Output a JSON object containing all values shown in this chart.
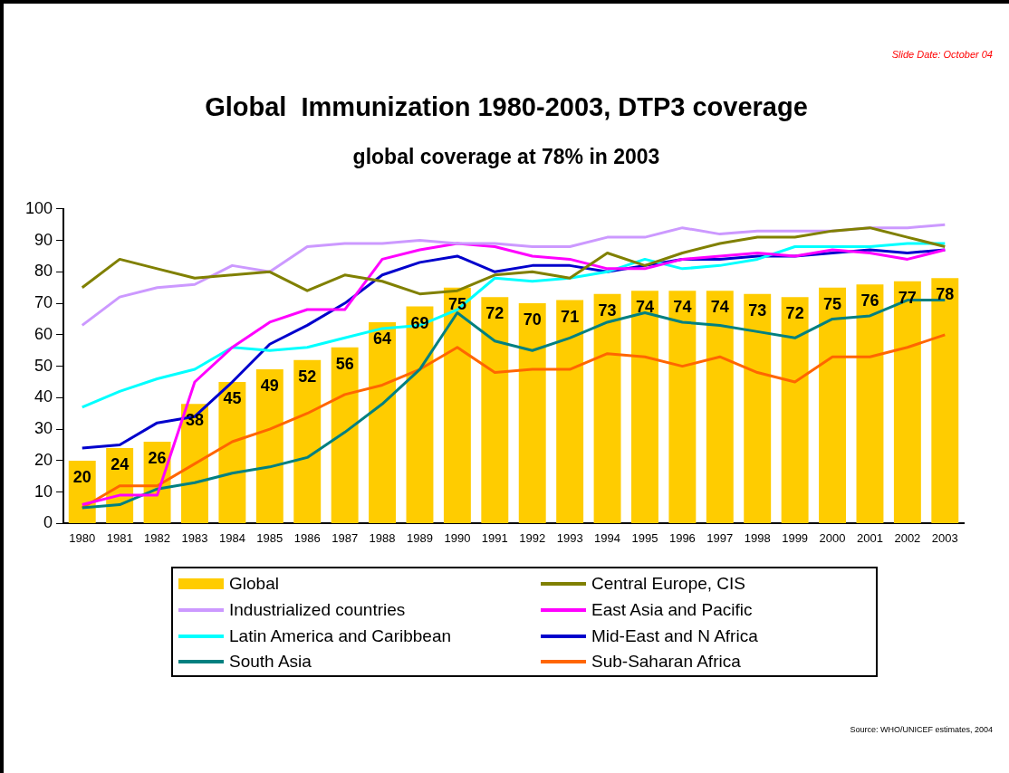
{
  "chart_data": {
    "type": "bar",
    "title": "Global  Immunization 1980-2003, DTP3 coverage",
    "subtitle": "global coverage at 78% in 2003",
    "annotations": [
      "Slide Date: October 04",
      "Source: WHO/UNICEF estimates, 2004"
    ],
    "categories": [
      "1980",
      "1981",
      "1982",
      "1983",
      "1984",
      "1985",
      "1986",
      "1987",
      "1988",
      "1989",
      "1990",
      "1991",
      "1992",
      "1993",
      "1994",
      "1995",
      "1996",
      "1997",
      "1998",
      "1999",
      "2000",
      "2001",
      "2002",
      "2003"
    ],
    "series": [
      {
        "name": "Global",
        "color": "#ffcc00",
        "values": [
          20,
          24,
          26,
          38,
          45,
          49,
          52,
          56,
          64,
          69,
          75,
          72,
          70,
          71,
          73,
          74,
          74,
          74,
          73,
          72,
          75,
          76,
          77,
          78
        ],
        "value_labels": [
          "20",
          "24",
          "26",
          "38",
          "45",
          "49",
          "52",
          "56",
          "64",
          "69",
          "75",
          "72",
          "70",
          "71",
          "73",
          "74",
          "74",
          "74",
          "73",
          "72",
          "75",
          "76",
          "77",
          "78"
        ]
      },
      {
        "name": "Central Europe, CIS",
        "type": "line",
        "color": "#808000",
        "values": [
          75,
          84,
          81,
          78,
          79,
          80,
          74,
          79,
          77,
          73,
          74,
          79,
          80,
          78,
          86,
          82,
          86,
          89,
          91,
          91,
          93,
          94,
          91,
          88
        ]
      },
      {
        "name": "Industrialized countries",
        "type": "line",
        "color": "#cc99ff",
        "values": [
          63,
          72,
          75,
          76,
          82,
          80,
          88,
          89,
          89,
          90,
          89,
          89,
          88,
          88,
          91,
          91,
          94,
          92,
          93,
          93,
          93,
          94,
          94,
          95
        ]
      },
      {
        "name": "East Asia and Pacific",
        "type": "line",
        "color": "#ff00ff",
        "values": [
          6,
          9,
          9,
          45,
          56,
          64,
          68,
          68,
          84,
          87,
          89,
          88,
          85,
          84,
          81,
          81,
          84,
          85,
          86,
          85,
          87,
          86,
          84,
          87
        ]
      },
      {
        "name": "Latin America and Caribbean",
        "type": "line",
        "color": "#00ffff",
        "values": [
          37,
          42,
          46,
          49,
          56,
          55,
          56,
          59,
          62,
          63,
          68,
          78,
          77,
          78,
          80,
          84,
          81,
          82,
          84,
          88,
          88,
          88,
          89,
          89
        ]
      },
      {
        "name": "Mid-East and N Africa",
        "type": "line",
        "color": "#0000cc",
        "values": [
          24,
          25,
          32,
          34,
          45,
          57,
          63,
          70,
          79,
          83,
          85,
          80,
          82,
          82,
          80,
          82,
          84,
          84,
          85,
          85,
          86,
          87,
          86,
          87
        ]
      },
      {
        "name": "South Asia",
        "type": "line",
        "color": "#008080",
        "values": [
          5,
          6,
          11,
          13,
          16,
          18,
          21,
          29,
          38,
          49,
          67,
          58,
          55,
          59,
          64,
          67,
          64,
          63,
          61,
          59,
          65,
          66,
          71,
          71
        ]
      },
      {
        "name": "Sub-Saharan Africa",
        "type": "line",
        "color": "#ff6600",
        "values": [
          5,
          12,
          12,
          19,
          26,
          30,
          35,
          41,
          44,
          49,
          56,
          48,
          49,
          49,
          54,
          53,
          50,
          53,
          48,
          45,
          53,
          53,
          56,
          60
        ]
      }
    ],
    "ylim": [
      0,
      100
    ],
    "yticks": [
      0,
      10,
      20,
      30,
      40,
      50,
      60,
      70,
      80,
      90,
      100
    ],
    "grid": false,
    "legend": "bottom",
    "marker": "none",
    "line_style": "solid"
  }
}
